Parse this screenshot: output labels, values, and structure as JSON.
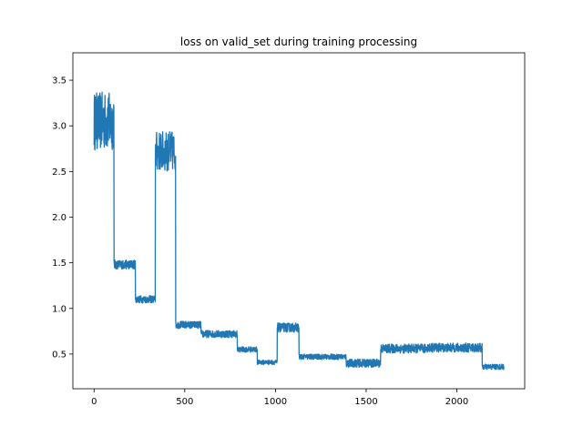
{
  "chart_data": {
    "type": "line",
    "title": "loss on valid_set during training processing",
    "xlabel": "",
    "ylabel": "",
    "xlim": [
      -117,
      2374
    ],
    "ylim": [
      0.12,
      3.8
    ],
    "xticks": [
      0,
      500,
      1000,
      1500,
      2000
    ],
    "xtick_labels": [
      "0",
      "500",
      "1000",
      "1500",
      "2000"
    ],
    "yticks": [
      0.5,
      1.0,
      1.5,
      2.0,
      2.5,
      3.0,
      3.5
    ],
    "ytick_labels": [
      "0.5",
      "1.0",
      "1.5",
      "2.0",
      "2.5",
      "3.0",
      "3.5"
    ],
    "grid": false,
    "legend": "none",
    "colors": {
      "line": "#1f77b4",
      "axes": "#000000",
      "background": "#ffffff"
    },
    "series": [
      {
        "segments": [
          {
            "x0": 0,
            "x1": 110,
            "mean": 3.05,
            "amp": 0.32
          },
          {
            "x0": 110,
            "x1": 228,
            "mean": 1.48,
            "amp": 0.05
          },
          {
            "x0": 228,
            "x1": 338,
            "mean": 1.1,
            "amp": 0.04
          },
          {
            "x0": 338,
            "x1": 450,
            "mean": 2.72,
            "amp": 0.22
          },
          {
            "x0": 450,
            "x1": 590,
            "mean": 0.82,
            "amp": 0.04
          },
          {
            "x0": 590,
            "x1": 790,
            "mean": 0.72,
            "amp": 0.04
          },
          {
            "x0": 790,
            "x1": 900,
            "mean": 0.55,
            "amp": 0.03
          },
          {
            "x0": 900,
            "x1": 1010,
            "mean": 0.41,
            "amp": 0.025
          },
          {
            "x0": 1010,
            "x1": 1130,
            "mean": 0.79,
            "amp": 0.05
          },
          {
            "x0": 1130,
            "x1": 1390,
            "mean": 0.47,
            "amp": 0.03
          },
          {
            "x0": 1390,
            "x1": 1580,
            "mean": 0.4,
            "amp": 0.045
          },
          {
            "x0": 1580,
            "x1": 1830,
            "mean": 0.56,
            "amp": 0.05
          },
          {
            "x0": 1830,
            "x1": 2140,
            "mean": 0.57,
            "amp": 0.05
          },
          {
            "x0": 2140,
            "x1": 2260,
            "mean": 0.36,
            "amp": 0.03
          }
        ]
      }
    ]
  }
}
